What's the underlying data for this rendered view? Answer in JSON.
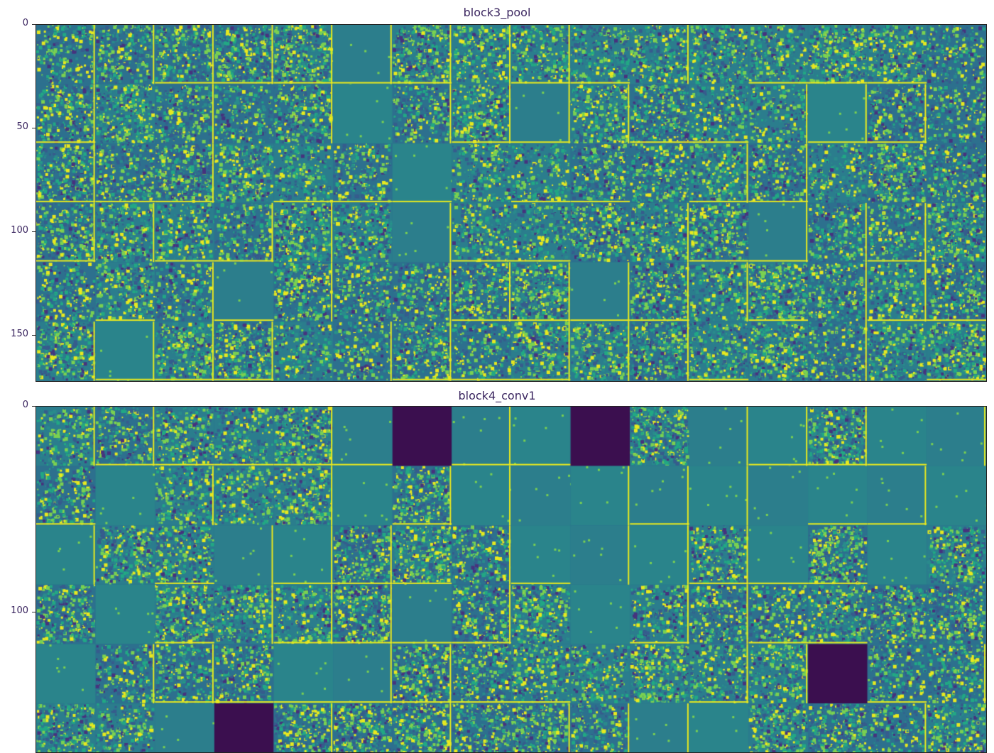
{
  "chart_data": [
    {
      "type": "heatmap",
      "title": "block3_pool",
      "colormap": "viridis",
      "grid": {
        "rows": 6,
        "cols": 16,
        "tile_size": 28
      },
      "ylim": [
        0,
        172
      ],
      "yticks": [
        0,
        50,
        100,
        150
      ],
      "flat_tiles": [
        [
          0,
          5
        ],
        [
          1,
          5
        ],
        [
          1,
          8
        ],
        [
          1,
          13
        ],
        [
          2,
          6
        ],
        [
          3,
          6
        ],
        [
          3,
          12
        ],
        [
          4,
          3
        ],
        [
          4,
          9
        ],
        [
          5,
          1
        ]
      ],
      "dark_tiles": []
    },
    {
      "type": "heatmap",
      "title": "block4_conv1",
      "colormap": "viridis",
      "grid": {
        "rows": 6,
        "cols": 16,
        "tile_size": 28
      },
      "ylim": [
        0,
        168
      ],
      "yticks": [
        0,
        100
      ],
      "flat_tiles": [
        [
          0,
          5
        ],
        [
          0,
          7
        ],
        [
          0,
          8
        ],
        [
          0,
          11
        ],
        [
          0,
          12
        ],
        [
          0,
          14
        ],
        [
          0,
          15
        ],
        [
          1,
          1
        ],
        [
          1,
          5
        ],
        [
          1,
          7
        ],
        [
          1,
          8
        ],
        [
          1,
          9
        ],
        [
          1,
          10
        ],
        [
          1,
          11
        ],
        [
          1,
          12
        ],
        [
          1,
          13
        ],
        [
          1,
          14
        ],
        [
          1,
          15
        ],
        [
          2,
          0
        ],
        [
          2,
          3
        ],
        [
          2,
          4
        ],
        [
          2,
          8
        ],
        [
          2,
          9
        ],
        [
          2,
          10
        ],
        [
          2,
          12
        ],
        [
          2,
          14
        ],
        [
          3,
          1
        ],
        [
          3,
          6
        ],
        [
          3,
          9
        ],
        [
          4,
          0
        ],
        [
          4,
          4
        ],
        [
          4,
          5
        ],
        [
          5,
          2
        ],
        [
          5,
          10
        ],
        [
          5,
          11
        ]
      ],
      "dark_tiles": [
        [
          0,
          6
        ],
        [
          0,
          9
        ],
        [
          4,
          13
        ],
        [
          5,
          3
        ]
      ]
    }
  ]
}
